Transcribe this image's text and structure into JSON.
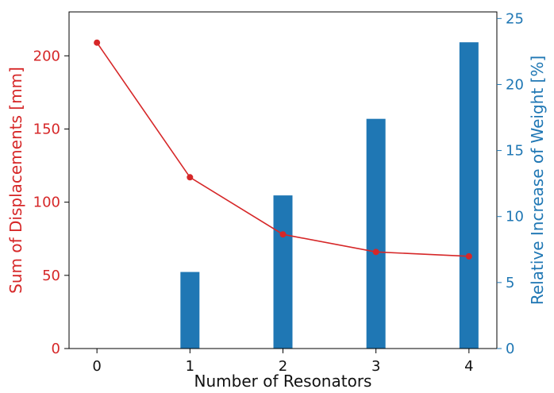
{
  "chart_data": {
    "type": "bar",
    "title": "",
    "x": [
      0,
      1,
      2,
      3,
      4
    ],
    "xlabel": "Number of Resonators",
    "left_axis": {
      "label": "Sum of Displacements [mm]",
      "ylim": [
        0,
        230
      ],
      "ticks": [
        0,
        50,
        100,
        150,
        200
      ],
      "color": "#d62728"
    },
    "right_axis": {
      "label": "Relative Increase of Weight [%]",
      "ylim": [
        0,
        25.5
      ],
      "ticks": [
        0,
        5,
        10,
        15,
        20,
        25
      ],
      "color": "#1f77b4"
    },
    "series": [
      {
        "type": "line",
        "axis": "left",
        "color": "#d62728",
        "values": [
          209,
          117,
          78,
          66,
          63
        ]
      },
      {
        "type": "bar",
        "axis": "right",
        "color": "#1f77b4",
        "values": [
          0,
          5.8,
          11.6,
          17.4,
          23.2
        ]
      }
    ]
  }
}
